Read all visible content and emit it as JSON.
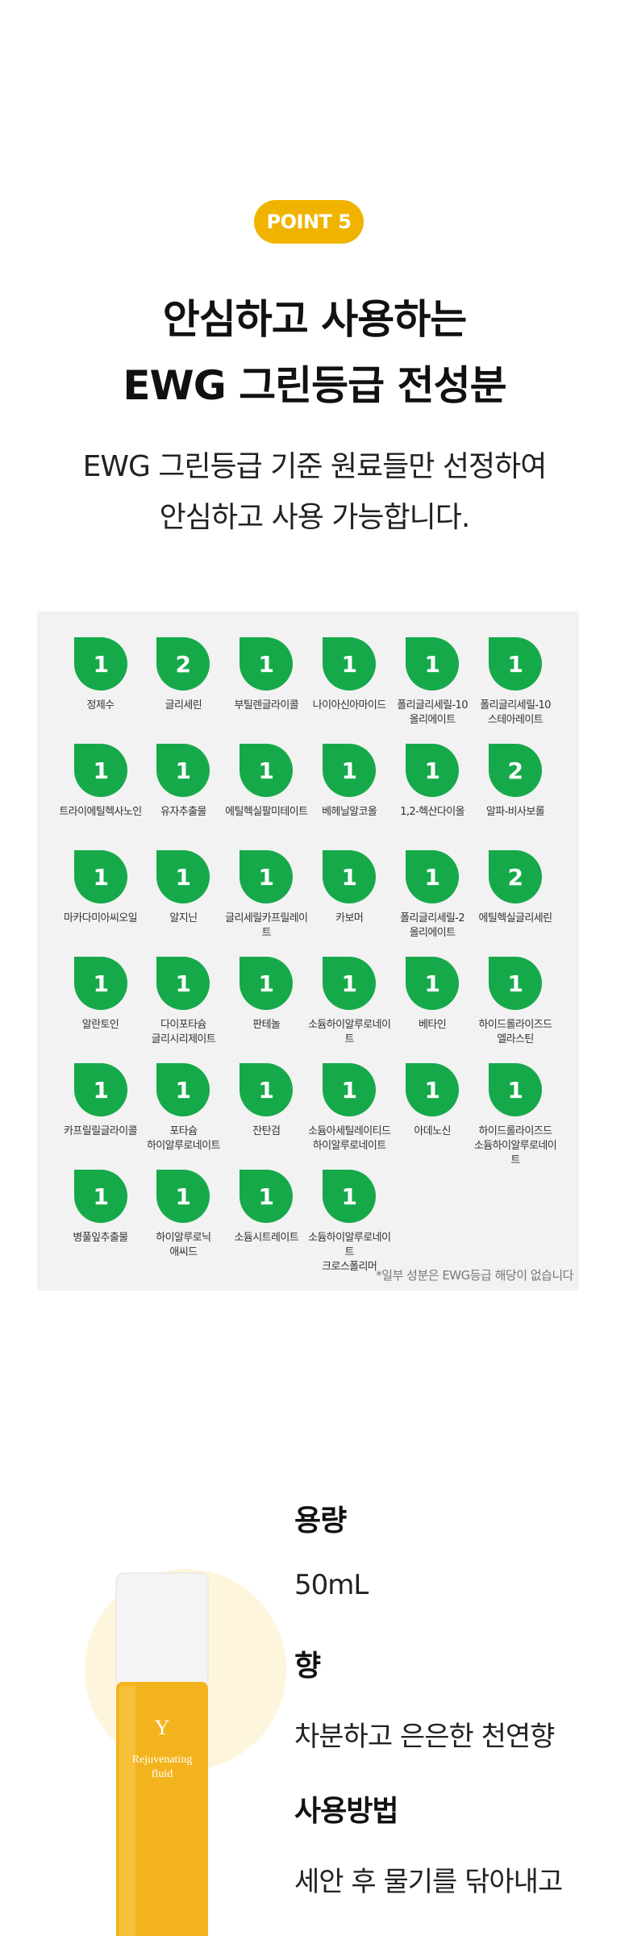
{
  "badge": "POINT 5",
  "title": [
    "안심하고 사용하는",
    "EWG 그린등급 전성분"
  ],
  "subtitle": [
    "EWG 그린등급 기준 원료들만 선정하여",
    "안심하고 사용 가능합니다."
  ],
  "ingredients": [
    {
      "grade": 1,
      "name": [
        "정제수"
      ]
    },
    {
      "grade": 2,
      "name": [
        "글리세린"
      ]
    },
    {
      "grade": 1,
      "name": [
        "부틸렌글라이콜"
      ]
    },
    {
      "grade": 1,
      "name": [
        "나이아신아마이드"
      ]
    },
    {
      "grade": 1,
      "name": [
        "폴리글리세릴-10",
        "올리에이트"
      ]
    },
    {
      "grade": 1,
      "name": [
        "폴리글리세릴-10",
        "스테아레이트"
      ]
    },
    {
      "grade": 1,
      "name": [
        "트라이에틸헥사노인"
      ]
    },
    {
      "grade": 1,
      "name": [
        "유자추출물"
      ]
    },
    {
      "grade": 1,
      "name": [
        "에틸헥실팔미테이트"
      ]
    },
    {
      "grade": 1,
      "name": [
        "베헤닐알코올"
      ]
    },
    {
      "grade": 1,
      "name": [
        "1,2-헥산다이올"
      ]
    },
    {
      "grade": 2,
      "name": [
        "알파-비사보롤"
      ]
    },
    {
      "grade": 1,
      "name": [
        "마카다미아씨오일"
      ]
    },
    {
      "grade": 1,
      "name": [
        "알지닌"
      ]
    },
    {
      "grade": 1,
      "name": [
        "글리세릴카프릴레이트"
      ]
    },
    {
      "grade": 1,
      "name": [
        "카보머"
      ]
    },
    {
      "grade": 1,
      "name": [
        "폴리글리세릴-2",
        "올리에이트"
      ]
    },
    {
      "grade": 2,
      "name": [
        "에틸헥실글리세린"
      ]
    },
    {
      "grade": 1,
      "name": [
        "알란토인"
      ]
    },
    {
      "grade": 1,
      "name": [
        "다이포타슘",
        "글리시리제이트"
      ]
    },
    {
      "grade": 1,
      "name": [
        "판테놀"
      ]
    },
    {
      "grade": 1,
      "name": [
        "소듐하이알루로네이트"
      ]
    },
    {
      "grade": 1,
      "name": [
        "베타인"
      ]
    },
    {
      "grade": 1,
      "name": [
        "하이드롤라이즈드",
        "엘라스틴"
      ]
    },
    {
      "grade": 1,
      "name": [
        "카프릴릴글라이콜"
      ]
    },
    {
      "grade": 1,
      "name": [
        "포타슘",
        "하이알루로네이트"
      ]
    },
    {
      "grade": 1,
      "name": [
        "잔탄검"
      ]
    },
    {
      "grade": 1,
      "name": [
        "소듐아세틸레이티드",
        "하이알루로네이트"
      ]
    },
    {
      "grade": 1,
      "name": [
        "아데노신"
      ]
    },
    {
      "grade": 1,
      "name": [
        "하이드롤라이즈드",
        "소듐하이알루로네이트"
      ]
    },
    {
      "grade": 1,
      "name": [
        "병풀잎추출물"
      ]
    },
    {
      "grade": 1,
      "name": [
        "하이알루로닉",
        "애씨드"
      ]
    },
    {
      "grade": 1,
      "name": [
        "소듐시트레이트"
      ]
    },
    {
      "grade": 1,
      "name": [
        "소듐하이알루로네이트",
        "크로스폴리머"
      ]
    }
  ],
  "footnote": "*일부 성분은 EWG등급 해당이 없습니다",
  "product_label": [
    "Rejuvenating",
    "fluid"
  ],
  "specs": [
    {
      "label": "용량",
      "value": "50mL"
    },
    {
      "label": "향",
      "value": "차분하고 은은한 천연향"
    },
    {
      "label": "사용방법",
      "value": "세안 후 물기를 닦아내고"
    }
  ]
}
